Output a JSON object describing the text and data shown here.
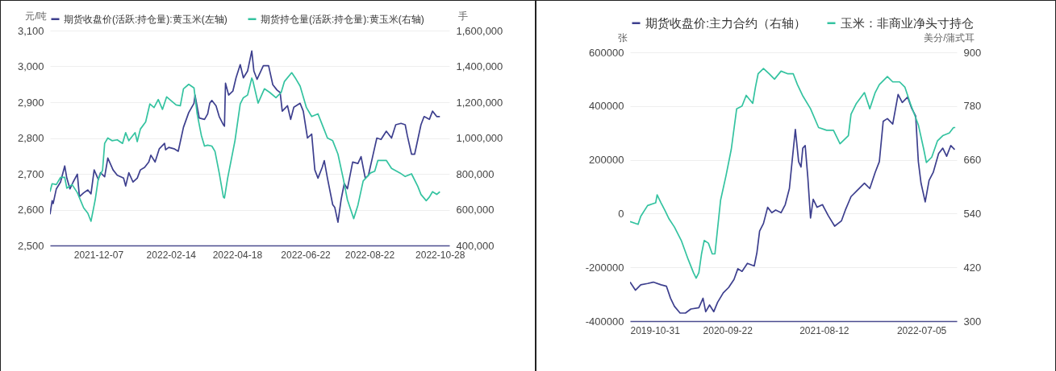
{
  "chart_data": [
    {
      "type": "line",
      "ylabel": "元/吨",
      "y2label": "手",
      "xlim": [
        "2021-10-22",
        "2022-11-06"
      ],
      "xticks": [
        "2021-12-07",
        "2022-02-14",
        "2022-04-18",
        "2022-06-22",
        "2022-08-22",
        "2022-10-28"
      ],
      "ylim": [
        2500,
        3100
      ],
      "yticks": [
        {
          "value": 2500,
          "label": "2,500"
        },
        {
          "value": 2600,
          "label": "2,600"
        },
        {
          "value": 2700,
          "label": "2,700"
        },
        {
          "value": 2800,
          "label": "2,800"
        },
        {
          "value": 2900,
          "label": "2,900"
        },
        {
          "value": 3000,
          "label": "3,000"
        },
        {
          "value": 3100,
          "label": "3,100"
        }
      ],
      "y2lim": [
        400000,
        1600000
      ],
      "y2ticks": [
        {
          "value": 400000,
          "label": "400,000"
        },
        {
          "value": 600000,
          "label": "600,000"
        },
        {
          "value": 800000,
          "label": "800,000"
        },
        {
          "value": 1000000,
          "label": "1,000,000"
        },
        {
          "value": 1200000,
          "label": "1,200,000"
        },
        {
          "value": 1400000,
          "label": "1,400,000"
        },
        {
          "value": 1600000,
          "label": "1,600,000"
        }
      ],
      "grid": "y",
      "legend": "top",
      "series": [
        {
          "name": "期货收盘价(活跃:持仓量):黄玉米(左轴)",
          "color": "#3d3f8e",
          "x": [
            "2021-10-22",
            "2021-10-24",
            "2021-10-25",
            "2021-10-28",
            "2021-11-01",
            "2021-11-05",
            "2021-11-07",
            "2021-11-10",
            "2021-11-13",
            "2021-11-17",
            "2021-11-19",
            "2021-11-23",
            "2021-11-27",
            "2021-11-30",
            "2021-12-03",
            "2021-12-07",
            "2021-12-09",
            "2021-12-13",
            "2021-12-16",
            "2021-12-21",
            "2021-12-25",
            "2021-12-31",
            "2022-01-02",
            "2022-01-05",
            "2022-01-09",
            "2022-01-13",
            "2022-01-16",
            "2022-01-20",
            "2022-01-24",
            "2022-01-26",
            "2022-01-30",
            "2022-02-03",
            "2022-02-08",
            "2022-02-09",
            "2022-02-12",
            "2022-02-17",
            "2022-02-21",
            "2022-02-26",
            "2022-03-03",
            "2022-03-08",
            "2022-03-09",
            "2022-03-13",
            "2022-03-18",
            "2022-03-21",
            "2022-03-23",
            "2022-03-25",
            "2022-03-29",
            "2022-04-01",
            "2022-04-05",
            "2022-04-06",
            "2022-04-07",
            "2022-04-10",
            "2022-04-14",
            "2022-04-17",
            "2022-04-21",
            "2022-04-24",
            "2022-04-28",
            "2022-05-02",
            "2022-05-04",
            "2022-05-07",
            "2022-05-13",
            "2022-05-18",
            "2022-05-22",
            "2022-05-26",
            "2022-05-29",
            "2022-05-31",
            "2022-06-05",
            "2022-06-08",
            "2022-06-11",
            "2022-06-17",
            "2022-06-20",
            "2022-06-24",
            "2022-06-28",
            "2022-07-01",
            "2022-07-04",
            "2022-07-08",
            "2022-07-10",
            "2022-07-13",
            "2022-07-18",
            "2022-07-20",
            "2022-07-23",
            "2022-07-26",
            "2022-07-29",
            "2022-08-01",
            "2022-08-06",
            "2022-08-11",
            "2022-08-14",
            "2022-08-18",
            "2022-08-21",
            "2022-08-25",
            "2022-08-29",
            "2022-09-02",
            "2022-09-07",
            "2022-09-12",
            "2022-09-16",
            "2022-09-21",
            "2022-09-25",
            "2022-09-27",
            "2022-10-01",
            "2022-10-04",
            "2022-10-10",
            "2022-10-13",
            "2022-10-18",
            "2022-10-21",
            "2022-10-25",
            "2022-10-28"
          ],
          "values": [
            2587,
            2625,
            2617,
            2658,
            2677,
            2722,
            2688,
            2658,
            2677,
            2699,
            2636,
            2647,
            2655,
            2644,
            2711,
            2684,
            2703,
            2692,
            2744,
            2711,
            2696,
            2688,
            2666,
            2703,
            2677,
            2688,
            2711,
            2718,
            2733,
            2752,
            2733,
            2770,
            2785,
            2767,
            2774,
            2770,
            2763,
            2830,
            2871,
            2897,
            2920,
            2856,
            2852,
            2867,
            2897,
            2905,
            2890,
            2860,
            2837,
            2833,
            2953,
            2920,
            2931,
            2968,
            3005,
            2968,
            2987,
            3043,
            2987,
            2964,
            3002,
            3002,
            2949,
            2934,
            2927,
            2875,
            2890,
            2852,
            2886,
            2897,
            2875,
            2800,
            2811,
            2711,
            2688,
            2718,
            2737,
            2688,
            2614,
            2606,
            2565,
            2628,
            2673,
            2658,
            2733,
            2729,
            2748,
            2688,
            2696,
            2748,
            2800,
            2796,
            2819,
            2800,
            2837,
            2841,
            2837,
            2807,
            2755,
            2755,
            2837,
            2860,
            2852,
            2875,
            2860,
            2860
          ]
        },
        {
          "name": "期货持仓量(活跃:持仓量):黄玉米(右轴)",
          "color": "#34c3a0",
          "axis": "y2",
          "x": [
            "2021-10-22",
            "2021-10-24",
            "2021-10-28",
            "2021-11-01",
            "2021-11-05",
            "2021-11-07",
            "2021-11-12",
            "2021-11-17",
            "2021-11-23",
            "2021-11-27",
            "2021-11-30",
            "2021-12-04",
            "2021-12-07",
            "2021-12-11",
            "2021-12-13",
            "2021-12-16",
            "2021-12-20",
            "2021-12-25",
            "2021-12-30",
            "2022-01-02",
            "2022-01-05",
            "2022-01-11",
            "2022-01-13",
            "2022-01-16",
            "2022-01-21",
            "2022-01-25",
            "2022-01-29",
            "2022-02-02",
            "2022-02-06",
            "2022-02-10",
            "2022-02-14",
            "2022-02-19",
            "2022-02-23",
            "2022-02-26",
            "2022-03-03",
            "2022-03-08",
            "2022-03-11",
            "2022-03-15",
            "2022-03-18",
            "2022-03-21",
            "2022-03-25",
            "2022-03-28",
            "2022-04-01",
            "2022-04-05",
            "2022-04-06",
            "2022-04-09",
            "2022-04-13",
            "2022-04-16",
            "2022-04-21",
            "2022-04-24",
            "2022-04-28",
            "2022-05-02",
            "2022-05-03",
            "2022-05-08",
            "2022-05-14",
            "2022-05-19",
            "2022-05-25",
            "2022-05-30",
            "2022-06-02",
            "2022-06-09",
            "2022-06-13",
            "2022-06-17",
            "2022-06-23",
            "2022-06-28",
            "2022-07-04",
            "2022-07-09",
            "2022-07-13",
            "2022-07-18",
            "2022-07-23",
            "2022-07-28",
            "2022-08-01",
            "2022-08-07",
            "2022-08-11",
            "2022-08-16",
            "2022-08-23",
            "2022-08-27",
            "2022-08-30",
            "2022-09-07",
            "2022-09-12",
            "2022-09-20",
            "2022-09-25",
            "2022-10-01",
            "2022-10-07",
            "2022-10-10",
            "2022-10-15",
            "2022-10-18",
            "2022-10-21",
            "2022-10-25",
            "2022-10-28"
          ],
          "values": [
            700000,
            745000,
            740000,
            780000,
            780000,
            720000,
            740000,
            695000,
            610000,
            580000,
            535000,
            655000,
            775000,
            820000,
            970000,
            1000000,
            985000,
            990000,
            970000,
            1030000,
            985000,
            1030000,
            980000,
            1050000,
            1090000,
            1190000,
            1170000,
            1215000,
            1160000,
            1230000,
            1210000,
            1185000,
            1180000,
            1275000,
            1300000,
            1280000,
            1135000,
            1015000,
            955000,
            960000,
            955000,
            925000,
            805000,
            670000,
            665000,
            775000,
            895000,
            985000,
            1190000,
            1225000,
            1240000,
            1335000,
            1320000,
            1195000,
            1275000,
            1255000,
            1225000,
            1255000,
            1315000,
            1365000,
            1330000,
            1290000,
            1170000,
            1120000,
            1135000,
            1060000,
            1000000,
            985000,
            910000,
            775000,
            655000,
            550000,
            625000,
            760000,
            805000,
            815000,
            875000,
            875000,
            830000,
            805000,
            785000,
            800000,
            730000,
            685000,
            650000,
            670000,
            700000,
            685000,
            700000
          ]
        }
      ]
    },
    {
      "type": "line",
      "ylabel": "张",
      "y2label": "美分/蒲式耳",
      "xlim": [
        "2019-10-31",
        "2022-11-01"
      ],
      "xticks": [
        "2019-10-31",
        "2020-09-22",
        "2021-08-12",
        "2022-07-05"
      ],
      "ylim": [
        -400000,
        600000
      ],
      "yticks": [
        -400000,
        -200000,
        0,
        200000,
        400000,
        600000
      ],
      "y2lim": [
        300,
        900
      ],
      "y2ticks": [
        300,
        420,
        540,
        660,
        780,
        900
      ],
      "grid": "y",
      "legend": "top",
      "series": [
        {
          "name": "期货收盘价:主力合约（右轴）",
          "color": "#3d3f8e",
          "axis": "y2",
          "x": [
            "2019-10-31",
            "2019-11-18",
            "2019-12-06",
            "2019-12-29",
            "2020-01-17",
            "2020-02-12",
            "2020-03-01",
            "2020-03-15",
            "2020-03-28",
            "2020-04-16",
            "2020-05-04",
            "2020-05-22",
            "2020-06-18",
            "2020-07-02",
            "2020-07-11",
            "2020-07-24",
            "2020-08-07",
            "2020-08-20",
            "2020-09-08",
            "2020-09-26",
            "2020-10-14",
            "2020-10-27",
            "2020-11-10",
            "2020-11-28",
            "2020-12-21",
            "2020-12-30",
            "2021-01-08",
            "2021-01-21",
            "2021-02-04",
            "2021-02-18",
            "2021-03-03",
            "2021-03-21",
            "2021-04-04",
            "2021-04-18",
            "2021-04-27",
            "2021-05-08",
            "2021-05-19",
            "2021-05-27",
            "2021-06-02",
            "2021-06-10",
            "2021-06-19",
            "2021-06-28",
            "2021-07-07",
            "2021-07-20",
            "2021-08-07",
            "2021-08-26",
            "2021-09-17",
            "2021-10-10",
            "2021-10-23",
            "2021-11-11",
            "2021-11-29",
            "2021-12-26",
            "2022-01-13",
            "2022-01-31",
            "2022-02-14",
            "2022-02-27",
            "2022-03-13",
            "2022-03-31",
            "2022-04-18",
            "2022-05-02",
            "2022-05-20",
            "2022-06-02",
            "2022-06-16",
            "2022-06-25",
            "2022-07-04",
            "2022-07-18",
            "2022-07-31",
            "2022-08-14",
            "2022-09-01",
            "2022-09-15",
            "2022-09-28",
            "2022-10-12",
            "2022-10-25"
          ],
          "values": [
            387,
            369,
            381,
            384,
            387,
            381,
            378,
            351,
            333,
            318,
            318,
            327,
            330,
            351,
            321,
            336,
            321,
            342,
            363,
            375,
            393,
            417,
            411,
            429,
            423,
            453,
            501,
            518,
            554,
            542,
            548,
            542,
            560,
            596,
            656,
            728,
            656,
            644,
            686,
            692,
            620,
            530,
            572,
            554,
            560,
            536,
            512,
            524,
            548,
            578,
            590,
            608,
            596,
            632,
            656,
            746,
            752,
            740,
            806,
            788,
            800,
            776,
            758,
            656,
            608,
            566,
            614,
            632,
            674,
            686,
            668,
            692,
            683
          ]
        },
        {
          "name": "玉米：非商业净头寸持仓",
          "color": "#34c3a0",
          "x": [
            "2019-10-31",
            "2019-11-27",
            "2019-12-06",
            "2019-12-29",
            "2020-01-25",
            "2020-01-30",
            "2020-02-12",
            "2020-02-26",
            "2020-03-10",
            "2020-03-28",
            "2020-04-20",
            "2020-05-13",
            "2020-05-31",
            "2020-06-09",
            "2020-06-18",
            "2020-06-27",
            "2020-07-06",
            "2020-07-20",
            "2020-08-02",
            "2020-08-11",
            "2020-08-30",
            "2020-09-17",
            "2020-10-05",
            "2020-10-23",
            "2020-11-10",
            "2020-11-24",
            "2020-12-16",
            "2020-12-25",
            "2021-01-03",
            "2021-01-21",
            "2021-02-09",
            "2021-02-27",
            "2021-03-21",
            "2021-04-13",
            "2021-05-01",
            "2021-05-15",
            "2021-06-01",
            "2021-06-28",
            "2021-07-25",
            "2021-08-21",
            "2021-09-13",
            "2021-10-05",
            "2021-11-02",
            "2021-11-11",
            "2021-11-29",
            "2021-12-26",
            "2022-01-13",
            "2022-01-31",
            "2022-02-14",
            "2022-03-13",
            "2022-03-31",
            "2022-04-23",
            "2022-05-11",
            "2022-05-29",
            "2022-06-25",
            "2022-07-13",
            "2022-07-22",
            "2022-08-09",
            "2022-08-28",
            "2022-09-15",
            "2022-10-07",
            "2022-10-21",
            "2022-10-27"
          ],
          "values": [
            -30000,
            -40000,
            -10000,
            30000,
            40000,
            70000,
            40000,
            10000,
            -20000,
            -50000,
            -100000,
            -170000,
            -220000,
            -240000,
            -220000,
            -150000,
            -100000,
            -110000,
            -150000,
            -150000,
            50000,
            140000,
            240000,
            390000,
            400000,
            440000,
            410000,
            470000,
            520000,
            540000,
            520000,
            500000,
            530000,
            520000,
            520000,
            480000,
            440000,
            390000,
            320000,
            310000,
            310000,
            260000,
            290000,
            370000,
            410000,
            450000,
            390000,
            450000,
            480000,
            510000,
            490000,
            490000,
            470000,
            410000,
            330000,
            240000,
            190000,
            210000,
            270000,
            290000,
            300000,
            320000,
            320000
          ]
        }
      ]
    }
  ]
}
